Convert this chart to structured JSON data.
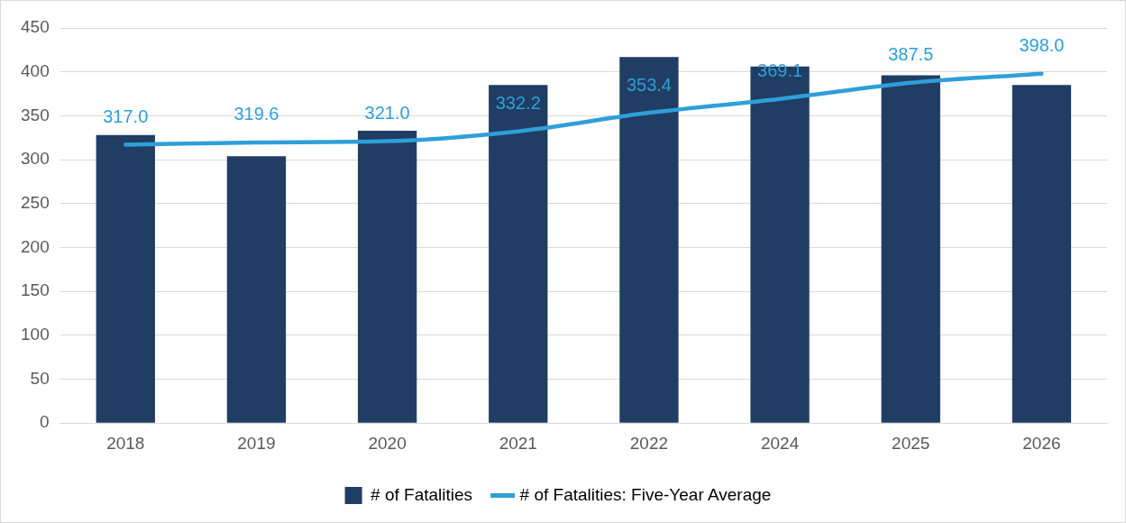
{
  "chart_data": {
    "type": "bar",
    "categories": [
      "2018",
      "2019",
      "2020",
      "2021",
      "2022",
      "2024",
      "2025",
      "2026"
    ],
    "series": [
      {
        "name": "# of Fatalities",
        "color": "#203d63",
        "values": [
          328,
          304,
          333,
          385,
          417,
          406,
          396,
          385
        ]
      },
      {
        "name": "# of Fatalities: Five-Year Average",
        "type": "line",
        "color": "#2e9fd9",
        "values": [
          317.0,
          319.6,
          321.0,
          332.2,
          353.4,
          369.1,
          387.5,
          398.0
        ],
        "value_labels": [
          "317.0",
          "319.6",
          "321.0",
          "332.2",
          "353.4",
          "369.1",
          "387.5",
          "398.0"
        ]
      }
    ],
    "ylim": [
      0,
      450
    ],
    "yticks": [
      0,
      50,
      100,
      150,
      200,
      250,
      300,
      350,
      400,
      450
    ],
    "grid": "y",
    "legend": "bottom",
    "marker": "none",
    "line_style": "solid"
  }
}
